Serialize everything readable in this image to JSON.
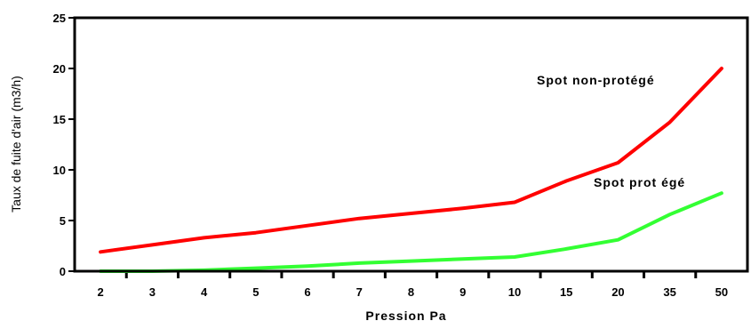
{
  "chart_data": {
    "type": "line",
    "title": "",
    "xlabel": "Pression Pa",
    "ylabel": "Taux de fuite d'air (m3/h)",
    "ylim": [
      0,
      25
    ],
    "yticks": [
      "0",
      "5",
      "10",
      "15",
      "20",
      "25"
    ],
    "categories": [
      "2",
      "3",
      "4",
      "5",
      "6",
      "7",
      "8",
      "9",
      "10",
      "15",
      "20",
      "35",
      "50"
    ],
    "grid": false,
    "series": [
      {
        "name": "Spot non-protégé",
        "color": "#ff0000",
        "values": [
          1.9,
          2.6,
          3.3,
          3.8,
          4.5,
          5.2,
          5.7,
          6.2,
          6.8,
          8.9,
          10.7,
          14.7,
          20.0
        ]
      },
      {
        "name": "Spot prot égé",
        "color": "#33ff33",
        "values": [
          0.0,
          0.0,
          0.1,
          0.3,
          0.5,
          0.8,
          1.0,
          1.2,
          1.4,
          2.2,
          3.1,
          5.6,
          7.7
        ]
      }
    ]
  }
}
